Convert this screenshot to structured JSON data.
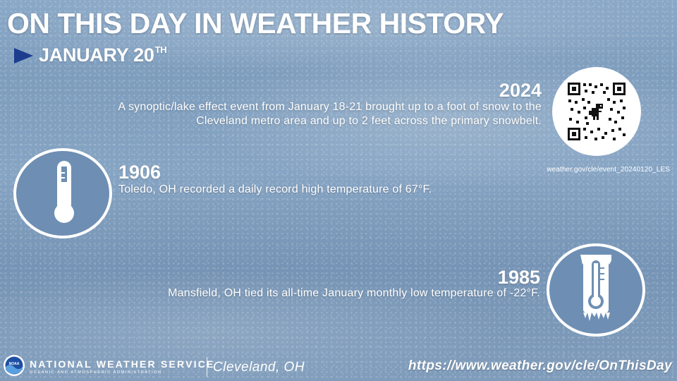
{
  "header": {
    "title": "ON THIS DAY IN WEATHER HISTORY",
    "date": "JANUARY 20",
    "date_suffix": "TH"
  },
  "events": [
    {
      "year": "2024",
      "text": "A synoptic/lake effect event from January 18-21 brought up to a foot of snow to the Cleveland metro area and up to 2 feet across the primary snowbelt.",
      "link": "weather.gov/cle/event_20240120_LES",
      "icon": "qr-code-icon"
    },
    {
      "year": "1906",
      "text": "Toledo, OH recorded a daily record high temperature of 67°F.",
      "icon": "thermometer-icon"
    },
    {
      "year": "1985",
      "text": "Mansfield, OH tied its all-time January monthly low temperature of -22°F.",
      "icon": "frozen-thermometer-icon"
    }
  ],
  "footer": {
    "agency": "NATIONAL WEATHER SERVICE",
    "agency_sub": "OCEANIC AND ATMOSPHERIC ADMINISTRATION",
    "office": "Cleveland, OH",
    "url": "https://www.weather.gov/cle/OnThisDay",
    "logo_text": "NOAA"
  },
  "colors": {
    "accent_arrow": "#1d3d8f",
    "circle_fill": "#6e8fb3",
    "background": "#84a2c2"
  }
}
